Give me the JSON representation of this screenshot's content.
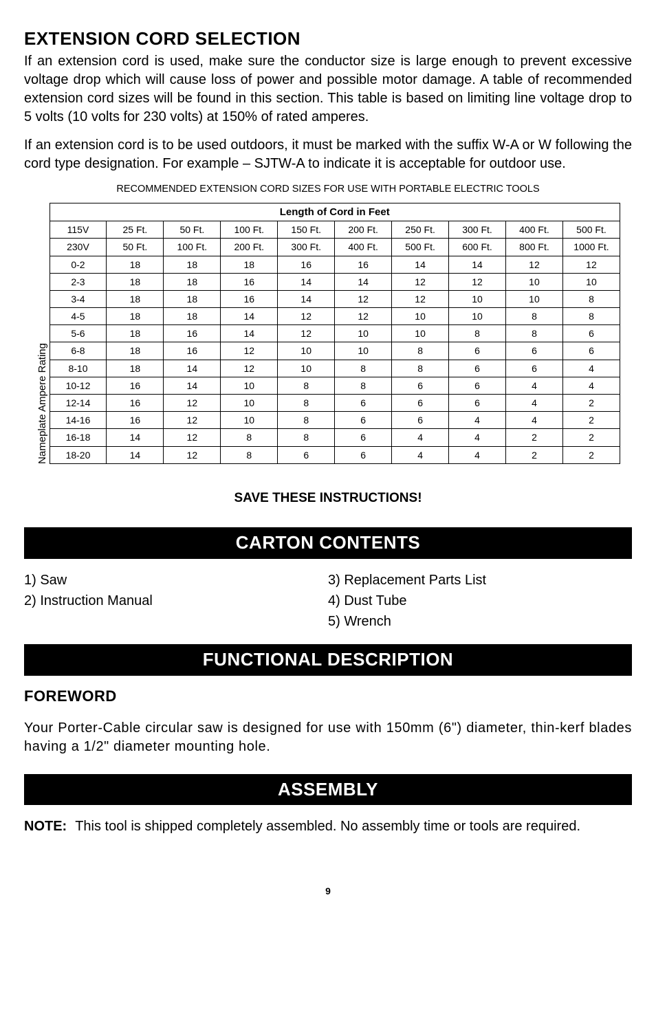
{
  "section1": {
    "title": "EXTENSION CORD SELECTION",
    "para1": "If an extension cord is used, make sure the conductor size is large enough to prevent excessive voltage drop which will cause loss of power and possible motor damage. A table of recommended extension cord sizes will be found in this section. This table is based on limiting line voltage drop to 5 volts (10 volts for 230 volts) at 150% of rated amperes.",
    "para2": "If an extension cord is to be used outdoors, it must be marked with the suffix W-A or W following the cord type designation. For example – SJTW-A to indicate it is acceptable for outdoor use.",
    "table_caption": "RECOMMENDED EXTENSION CORD SIZES FOR USE WITH PORTABLE ELECTRIC TOOLS"
  },
  "table": {
    "header": "Length of Cord in Feet",
    "rot_label": "Nameplate Ampere Rating",
    "row_115_label": "115V",
    "row_230_label": "230V",
    "cols_115": [
      "25 Ft.",
      "50 Ft.",
      "100 Ft.",
      "150 Ft.",
      "200 Ft.",
      "250 Ft.",
      "300 Ft.",
      "400 Ft.",
      "500 Ft."
    ],
    "cols_230": [
      "50 Ft.",
      "100 Ft.",
      "200 Ft.",
      "300 Ft.",
      "400 Ft.",
      "500 Ft.",
      "600 Ft.",
      "800 Ft.",
      "1000 Ft."
    ],
    "rows": [
      {
        "range": "0-2",
        "v": [
          "18",
          "18",
          "18",
          "16",
          "16",
          "14",
          "14",
          "12",
          "12"
        ]
      },
      {
        "range": "2-3",
        "v": [
          "18",
          "18",
          "16",
          "14",
          "14",
          "12",
          "12",
          "10",
          "10"
        ]
      },
      {
        "range": "3-4",
        "v": [
          "18",
          "18",
          "16",
          "14",
          "12",
          "12",
          "10",
          "10",
          "8"
        ]
      },
      {
        "range": "4-5",
        "v": [
          "18",
          "18",
          "14",
          "12",
          "12",
          "10",
          "10",
          "8",
          "8"
        ]
      },
      {
        "range": "5-6",
        "v": [
          "18",
          "16",
          "14",
          "12",
          "10",
          "10",
          "8",
          "8",
          "6"
        ]
      },
      {
        "range": "6-8",
        "v": [
          "18",
          "16",
          "12",
          "10",
          "10",
          "8",
          "6",
          "6",
          "6"
        ]
      },
      {
        "range": "8-10",
        "v": [
          "18",
          "14",
          "12",
          "10",
          "8",
          "8",
          "6",
          "6",
          "4"
        ]
      },
      {
        "range": "10-12",
        "v": [
          "16",
          "14",
          "10",
          "8",
          "8",
          "6",
          "6",
          "4",
          "4"
        ]
      },
      {
        "range": "12-14",
        "v": [
          "16",
          "12",
          "10",
          "8",
          "6",
          "6",
          "6",
          "4",
          "2"
        ]
      },
      {
        "range": "14-16",
        "v": [
          "16",
          "12",
          "10",
          "8",
          "6",
          "6",
          "4",
          "4",
          "2"
        ]
      },
      {
        "range": "16-18",
        "v": [
          "14",
          "12",
          "8",
          "8",
          "6",
          "4",
          "4",
          "2",
          "2"
        ]
      },
      {
        "range": "18-20",
        "v": [
          "14",
          "12",
          "8",
          "6",
          "6",
          "4",
          "4",
          "2",
          "2"
        ]
      }
    ]
  },
  "save": "SAVE THESE INSTRUCTIONS!",
  "carton": {
    "title": "CARTON CONTENTS",
    "left": [
      "1) Saw",
      "2) Instruction Manual"
    ],
    "right": [
      "3) Replacement Parts List",
      "4) Dust Tube",
      "5) Wrench"
    ]
  },
  "functional": {
    "title": "FUNCTIONAL DESCRIPTION",
    "sub": "FOREWORD",
    "para": "Your Porter-Cable circular saw is designed for use with 150mm (6\") diameter, thin-kerf blades having a 1/2\" diameter mounting hole."
  },
  "assembly": {
    "title": "ASSEMBLY",
    "note_label": "NOTE:",
    "note_text": "This tool is shipped completely assembled. No assembly time or tools are required."
  },
  "page_num": "9"
}
